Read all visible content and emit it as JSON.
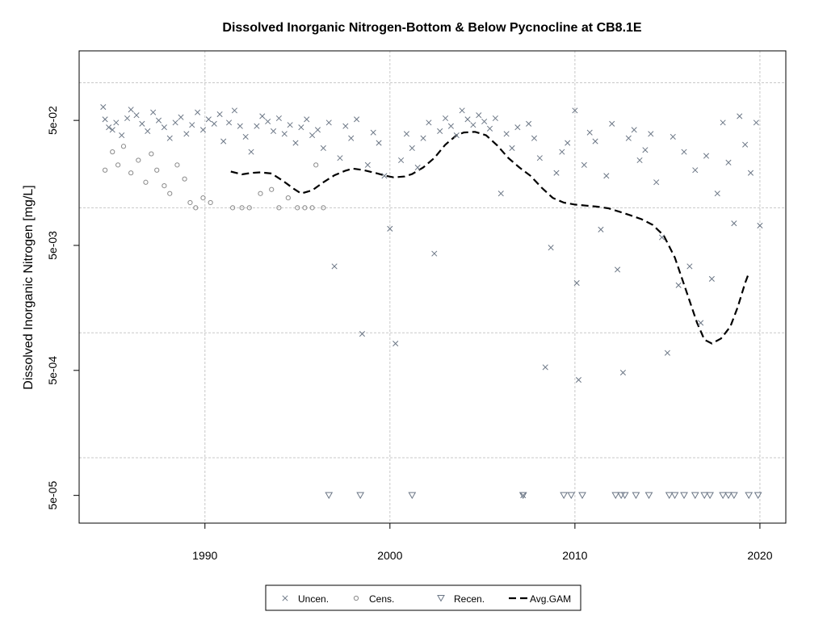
{
  "chart_data": {
    "type": "scatter",
    "title": "Dissolved Inorganic Nitrogen-Bottom & Below Pycnocline at CB8.1E",
    "xlabel": "",
    "ylabel": "Dissolved Inorganic Nitrogen [mg/L]",
    "y_scale": "log10",
    "xlim": [
      1983.2,
      2021.4
    ],
    "ylim": [
      3e-05,
      0.18
    ],
    "x_ticks": [
      1990,
      2000,
      2010,
      2020
    ],
    "x_tick_labels": [
      "1990",
      "2000",
      "2010",
      "2020"
    ],
    "y_ticks": [
      5e-05,
      0.0005,
      0.005,
      0.05
    ],
    "y_tick_labels": [
      "5e-05",
      "5e-04",
      "5e-03",
      "5e-02"
    ],
    "grid_x": [
      1990,
      2000,
      2010,
      2020
    ],
    "grid_y": [
      0.0001,
      0.001,
      0.01,
      0.1
    ],
    "grid": true,
    "legend_position": "bottom",
    "legend": [
      {
        "label": "Uncen.",
        "marker": "x"
      },
      {
        "label": "Cens.",
        "marker": "circle"
      },
      {
        "label": "Recen.",
        "marker": "triangle-down"
      },
      {
        "label": "Avg.GAM",
        "marker": "dashed-line"
      }
    ],
    "series": [
      {
        "name": "Uncen.",
        "marker": "x",
        "color": "#6b7685",
        "points": [
          [
            1984.5,
            0.064
          ],
          [
            1984.6,
            0.051
          ],
          [
            1984.8,
            0.044
          ],
          [
            1985.0,
            0.042
          ],
          [
            1985.2,
            0.048
          ],
          [
            1985.5,
            0.038
          ],
          [
            1985.8,
            0.052
          ],
          [
            1986.0,
            0.061
          ],
          [
            1986.3,
            0.055
          ],
          [
            1986.6,
            0.047
          ],
          [
            1986.9,
            0.041
          ],
          [
            1987.2,
            0.058
          ],
          [
            1987.5,
            0.05
          ],
          [
            1987.8,
            0.044
          ],
          [
            1988.1,
            0.036
          ],
          [
            1988.4,
            0.048
          ],
          [
            1988.7,
            0.053
          ],
          [
            1989.0,
            0.039
          ],
          [
            1989.3,
            0.046
          ],
          [
            1989.6,
            0.058
          ],
          [
            1989.9,
            0.042
          ],
          [
            1990.2,
            0.051
          ],
          [
            1990.5,
            0.047
          ],
          [
            1990.8,
            0.056
          ],
          [
            1991.0,
            0.034
          ],
          [
            1991.3,
            0.048
          ],
          [
            1991.6,
            0.06
          ],
          [
            1991.9,
            0.045
          ],
          [
            1992.2,
            0.037
          ],
          [
            1992.5,
            0.028
          ],
          [
            1992.8,
            0.045
          ],
          [
            1993.1,
            0.054
          ],
          [
            1993.4,
            0.049
          ],
          [
            1993.7,
            0.041
          ],
          [
            1994.0,
            0.052
          ],
          [
            1994.3,
            0.039
          ],
          [
            1994.6,
            0.046
          ],
          [
            1994.9,
            0.033
          ],
          [
            1995.2,
            0.044
          ],
          [
            1995.5,
            0.051
          ],
          [
            1995.8,
            0.038
          ],
          [
            1996.1,
            0.042
          ],
          [
            1996.4,
            0.03
          ],
          [
            1996.7,
            0.048
          ],
          [
            1997.0,
            0.0034
          ],
          [
            1997.3,
            0.025
          ],
          [
            1997.6,
            0.045
          ],
          [
            1997.9,
            0.036
          ],
          [
            1998.2,
            0.051
          ],
          [
            1998.5,
            0.00098
          ],
          [
            1998.8,
            0.022
          ],
          [
            1999.1,
            0.04
          ],
          [
            1999.4,
            0.033
          ],
          [
            1999.7,
            0.018
          ],
          [
            2000.0,
            0.0068
          ],
          [
            2000.3,
            0.00082
          ],
          [
            2000.6,
            0.024
          ],
          [
            2000.9,
            0.039
          ],
          [
            2001.2,
            0.03
          ],
          [
            2001.5,
            0.021
          ],
          [
            2001.8,
            0.036
          ],
          [
            2002.1,
            0.048
          ],
          [
            2002.4,
            0.0043
          ],
          [
            2002.7,
            0.041
          ],
          [
            2003.0,
            0.052
          ],
          [
            2003.3,
            0.045
          ],
          [
            2003.6,
            0.038
          ],
          [
            2003.9,
            0.06
          ],
          [
            2004.2,
            0.051
          ],
          [
            2004.5,
            0.046
          ],
          [
            2004.8,
            0.055
          ],
          [
            2005.1,
            0.049
          ],
          [
            2005.4,
            0.043
          ],
          [
            2005.7,
            0.052
          ],
          [
            2006.0,
            0.013
          ],
          [
            2006.3,
            0.039
          ],
          [
            2006.6,
            0.03
          ],
          [
            2006.9,
            0.044
          ],
          [
            2007.2,
            5e-05
          ],
          [
            2007.5,
            0.047
          ],
          [
            2007.8,
            0.036
          ],
          [
            2008.1,
            0.025
          ],
          [
            2008.4,
            0.00053
          ],
          [
            2008.7,
            0.0048
          ],
          [
            2009.0,
            0.019
          ],
          [
            2009.3,
            0.028
          ],
          [
            2009.6,
            0.033
          ],
          [
            2010.0,
            0.06
          ],
          [
            2010.1,
            0.0025
          ],
          [
            2010.2,
            0.00042
          ],
          [
            2010.5,
            0.022
          ],
          [
            2010.8,
            0.04
          ],
          [
            2011.1,
            0.034
          ],
          [
            2011.4,
            0.0067
          ],
          [
            2011.7,
            0.018
          ],
          [
            2012.0,
            0.047
          ],
          [
            2012.3,
            0.0032
          ],
          [
            2012.6,
            0.00048
          ],
          [
            2012.9,
            0.036
          ],
          [
            2013.2,
            0.042
          ],
          [
            2013.5,
            0.024
          ],
          [
            2013.8,
            0.029
          ],
          [
            2014.1,
            0.039
          ],
          [
            2014.4,
            0.016
          ],
          [
            2014.7,
            0.0058
          ],
          [
            2015.0,
            0.00069
          ],
          [
            2015.3,
            0.037
          ],
          [
            2015.6,
            0.0024
          ],
          [
            2015.9,
            0.028
          ],
          [
            2016.2,
            0.0034
          ],
          [
            2016.5,
            0.02
          ],
          [
            2016.8,
            0.0012
          ],
          [
            2017.1,
            0.026
          ],
          [
            2017.4,
            0.0027
          ],
          [
            2017.7,
            0.013
          ],
          [
            2018.0,
            0.048
          ],
          [
            2018.3,
            0.023
          ],
          [
            2018.6,
            0.0075
          ],
          [
            2018.9,
            0.054
          ],
          [
            2019.2,
            0.032
          ],
          [
            2019.5,
            0.019
          ],
          [
            2019.8,
            0.048
          ],
          [
            2020.0,
            0.0072
          ]
        ]
      },
      {
        "name": "Cens.",
        "marker": "circle",
        "color": "#8a8a8a",
        "points": [
          [
            1984.6,
            0.02
          ],
          [
            1985.0,
            0.028
          ],
          [
            1985.3,
            0.022
          ],
          [
            1985.6,
            0.031
          ],
          [
            1986.0,
            0.019
          ],
          [
            1986.4,
            0.024
          ],
          [
            1986.8,
            0.016
          ],
          [
            1987.1,
            0.027
          ],
          [
            1987.4,
            0.02
          ],
          [
            1987.8,
            0.015
          ],
          [
            1988.1,
            0.013
          ],
          [
            1988.5,
            0.022
          ],
          [
            1988.9,
            0.017
          ],
          [
            1989.2,
            0.011
          ],
          [
            1989.5,
            0.01
          ],
          [
            1989.9,
            0.012
          ],
          [
            1990.3,
            0.011
          ],
          [
            1991.5,
            0.01
          ],
          [
            1992.0,
            0.01
          ],
          [
            1992.4,
            0.01
          ],
          [
            1993.0,
            0.013
          ],
          [
            1993.6,
            0.014
          ],
          [
            1994.0,
            0.01
          ],
          [
            1994.5,
            0.012
          ],
          [
            1995.0,
            0.01
          ],
          [
            1995.4,
            0.01
          ],
          [
            1995.8,
            0.01
          ],
          [
            1996.0,
            0.022
          ],
          [
            1996.4,
            0.01
          ]
        ]
      },
      {
        "name": "Recen.",
        "marker": "triangle-down",
        "color": "#6b7685",
        "points": [
          [
            1996.7,
            5e-05
          ],
          [
            1998.4,
            5e-05
          ],
          [
            2001.2,
            5e-05
          ],
          [
            2007.2,
            5e-05
          ],
          [
            2009.4,
            5e-05
          ],
          [
            2009.8,
            5e-05
          ],
          [
            2010.4,
            5e-05
          ],
          [
            2012.2,
            5e-05
          ],
          [
            2012.5,
            5e-05
          ],
          [
            2012.7,
            5e-05
          ],
          [
            2013.3,
            5e-05
          ],
          [
            2014.0,
            5e-05
          ],
          [
            2015.1,
            5e-05
          ],
          [
            2015.4,
            5e-05
          ],
          [
            2015.9,
            5e-05
          ],
          [
            2016.5,
            5e-05
          ],
          [
            2017.0,
            5e-05
          ],
          [
            2017.3,
            5e-05
          ],
          [
            2018.0,
            5e-05
          ],
          [
            2018.3,
            5e-05
          ],
          [
            2018.6,
            5e-05
          ],
          [
            2019.4,
            5e-05
          ],
          [
            2019.9,
            5e-05
          ]
        ]
      },
      {
        "name": "Avg.GAM",
        "marker": "dashed-line",
        "color": "#000000",
        "points": [
          [
            1991.4,
            0.0195
          ],
          [
            1992.0,
            0.0185
          ],
          [
            1992.5,
            0.019
          ],
          [
            1993.0,
            0.0192
          ],
          [
            1993.6,
            0.0188
          ],
          [
            1994.2,
            0.0165
          ],
          [
            1994.8,
            0.0142
          ],
          [
            1995.2,
            0.013
          ],
          [
            1995.8,
            0.0138
          ],
          [
            1996.4,
            0.016
          ],
          [
            1997.0,
            0.0182
          ],
          [
            1997.6,
            0.0198
          ],
          [
            1998.0,
            0.0206
          ],
          [
            1998.6,
            0.02
          ],
          [
            1999.2,
            0.019
          ],
          [
            1999.8,
            0.018
          ],
          [
            2000.2,
            0.0175
          ],
          [
            2000.8,
            0.0178
          ],
          [
            2001.2,
            0.0186
          ],
          [
            2001.8,
            0.021
          ],
          [
            2002.4,
            0.025
          ],
          [
            2003.0,
            0.032
          ],
          [
            2003.6,
            0.038
          ],
          [
            2004.0,
            0.04
          ],
          [
            2004.6,
            0.0405
          ],
          [
            2005.2,
            0.038
          ],
          [
            2005.8,
            0.0315
          ],
          [
            2006.4,
            0.025
          ],
          [
            2007.0,
            0.021
          ],
          [
            2007.6,
            0.018
          ],
          [
            2008.2,
            0.0145
          ],
          [
            2008.8,
            0.012
          ],
          [
            2009.4,
            0.011
          ],
          [
            2010.0,
            0.0106
          ],
          [
            2010.6,
            0.0104
          ],
          [
            2011.2,
            0.0102
          ],
          [
            2011.8,
            0.0099
          ],
          [
            2012.4,
            0.0093
          ],
          [
            2013.0,
            0.0087
          ],
          [
            2013.6,
            0.0081
          ],
          [
            2014.2,
            0.0073
          ],
          [
            2014.8,
            0.006
          ],
          [
            2015.4,
            0.004
          ],
          [
            2016.0,
            0.0022
          ],
          [
            2016.6,
            0.0012
          ],
          [
            2017.0,
            0.00088
          ],
          [
            2017.4,
            0.00082
          ],
          [
            2017.9,
            0.0009
          ],
          [
            2018.4,
            0.00112
          ],
          [
            2018.8,
            0.0016
          ],
          [
            2019.2,
            0.0025
          ],
          [
            2019.4,
            0.003
          ]
        ]
      }
    ]
  }
}
